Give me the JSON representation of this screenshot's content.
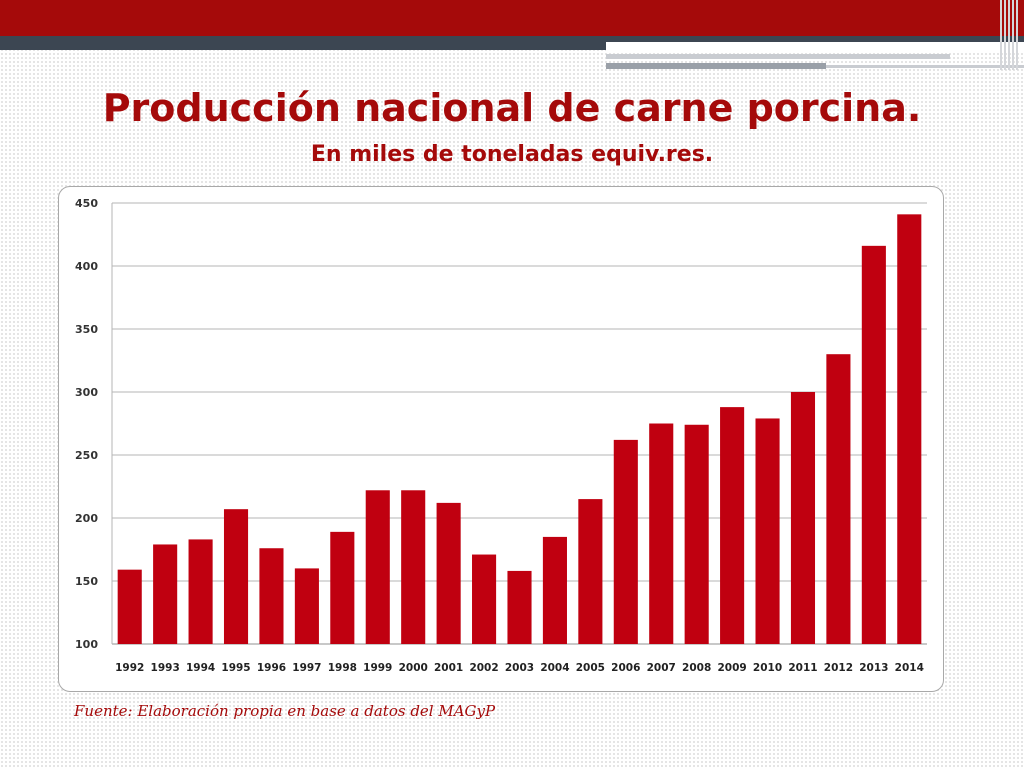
{
  "slide": {
    "title": "Producción nacional de carne porcina.",
    "subtitle": "En miles de toneladas equiv.res.",
    "source": "Fuente: Elaboración propia en base a datos del MAGyP"
  },
  "colors": {
    "accent": "#a50a0a",
    "bar": "#c00010",
    "dark_band": "#3c4652",
    "gridline": "#b5b5b5"
  },
  "chart_data": {
    "type": "bar",
    "title": "Producción nacional de carne porcina.",
    "subtitle": "En miles de toneladas equiv.res.",
    "xlabel": "",
    "ylabel": "",
    "categories": [
      "1992",
      "1993",
      "1994",
      "1995",
      "1996",
      "1997",
      "1998",
      "1999",
      "2000",
      "2001",
      "2002",
      "2003",
      "2004",
      "2005",
      "2006",
      "2007",
      "2008",
      "2009",
      "2010",
      "2011",
      "2012",
      "2013",
      "2014"
    ],
    "values": [
      159,
      179,
      183,
      207,
      176,
      160,
      189,
      222,
      222,
      212,
      171,
      158,
      185,
      215,
      262,
      275,
      274,
      288,
      279,
      300,
      330,
      416,
      441
    ],
    "ylim": [
      100,
      450
    ],
    "yticks": [
      "100",
      "150",
      "200",
      "250",
      "300",
      "350",
      "400",
      "450"
    ],
    "grid": true,
    "legend": "none"
  }
}
